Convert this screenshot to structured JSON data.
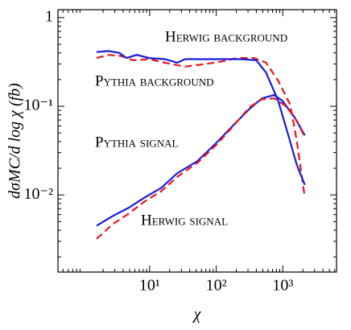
{
  "chart_data": {
    "type": "line",
    "xlabel": "χ",
    "ylabel": "dσMC/d log χ (fb)",
    "xscale": "log",
    "yscale": "log",
    "xlim": [
      0.42,
      6400
    ],
    "ylim": [
      0.00135,
      1.23
    ],
    "xticks": [
      {
        "value": 10,
        "label": "10¹"
      },
      {
        "value": 100,
        "label": "10²"
      },
      {
        "value": 1000,
        "label": "10³"
      }
    ],
    "yticks": [
      {
        "value": 0.01,
        "label": "10⁻²"
      },
      {
        "value": 0.1,
        "label": "10⁻¹"
      },
      1
    ],
    "series": [
      {
        "name": "Herwig background",
        "color": "#e8141e",
        "linestyle": "dashed",
        "x": [
          1.6,
          2.4,
          3.7,
          5.6,
          9.8,
          17,
          34,
          69,
          120,
          210,
          370,
          560,
          850,
          1290,
          1620,
          2140
        ],
        "values": [
          0.35,
          0.38,
          0.37,
          0.33,
          0.34,
          0.31,
          0.28,
          0.3,
          0.32,
          0.35,
          0.35,
          0.31,
          0.195,
          0.104,
          0.041,
          0.0094
        ]
      },
      {
        "name": "Pythia background",
        "color": "#1a1adc",
        "linestyle": "solid",
        "x": [
          1.6,
          2.4,
          3.5,
          4.5,
          6.4,
          9.8,
          17,
          26,
          34,
          79,
          240,
          400,
          560,
          850,
          1230,
          1620,
          2140
        ],
        "values": [
          0.41,
          0.42,
          0.4,
          0.35,
          0.38,
          0.35,
          0.34,
          0.31,
          0.34,
          0.34,
          0.34,
          0.33,
          0.24,
          0.116,
          0.045,
          0.022,
          0.013
        ]
      },
      {
        "name": "Pythia signal",
        "color": "#1a1adc",
        "linestyle": "solid",
        "x": [
          1.6,
          2.8,
          4.9,
          8.5,
          14.9,
          26,
          52,
          105,
          184,
          318,
          486,
          740,
          980,
          1490,
          2140
        ],
        "values": [
          0.0045,
          0.0058,
          0.0072,
          0.0094,
          0.012,
          0.0176,
          0.024,
          0.04,
          0.062,
          0.094,
          0.123,
          0.134,
          0.116,
          0.076,
          0.047
        ]
      },
      {
        "name": "Herwig signal",
        "color": "#e8141e",
        "linestyle": "dashed",
        "x": [
          1.6,
          2.8,
          4.9,
          8.5,
          14.9,
          26,
          52,
          105,
          184,
          318,
          486,
          740,
          1130,
          1620,
          2140
        ],
        "values": [
          0.0032,
          0.0047,
          0.0062,
          0.0085,
          0.011,
          0.016,
          0.023,
          0.038,
          0.061,
          0.098,
          0.12,
          0.123,
          0.1,
          0.069,
          0.045
        ]
      }
    ]
  }
}
